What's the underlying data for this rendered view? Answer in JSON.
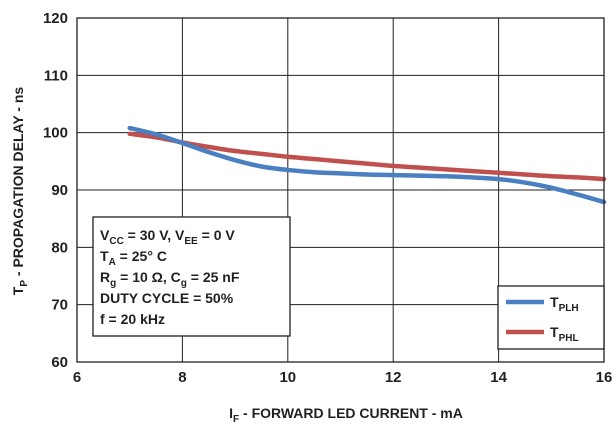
{
  "chart_data": {
    "type": "line",
    "xlabel": {
      "main": "I",
      "sub": "F",
      "rest": " - FORWARD LED CURRENT - mA"
    },
    "ylabel": {
      "main": "T",
      "sub": "P",
      "rest": " - PROPAGATION DELAY - ns"
    },
    "xlim": [
      6,
      16
    ],
    "ylim": [
      60,
      120
    ],
    "xticks": [
      6,
      8,
      10,
      12,
      14,
      16
    ],
    "yticks": [
      60,
      70,
      80,
      90,
      100,
      110,
      120
    ],
    "grid": true,
    "legend_position": "bottom-right",
    "series": [
      {
        "name": "TPLH",
        "label_main": "T",
        "label_sub": "PLH",
        "color": "#4a7fc1",
        "x": [
          7,
          7.5,
          8,
          8.5,
          9,
          9.5,
          10,
          10.5,
          11,
          11.5,
          12,
          12.5,
          13,
          13.5,
          14,
          14.5,
          15,
          15.5,
          16
        ],
        "y": [
          100.8,
          99.7,
          98.2,
          96.6,
          95.2,
          94.1,
          93.5,
          93.1,
          92.9,
          92.7,
          92.6,
          92.5,
          92.4,
          92.2,
          91.9,
          91.3,
          90.4,
          89.2,
          87.9
        ]
      },
      {
        "name": "TPHL",
        "label_main": "T",
        "label_sub": "PHL",
        "color": "#c0504d",
        "x": [
          7,
          7.5,
          8,
          8.5,
          9,
          9.5,
          10,
          10.5,
          11,
          11.5,
          12,
          12.5,
          13,
          13.5,
          14,
          14.5,
          15,
          15.5,
          16
        ],
        "y": [
          99.8,
          99.2,
          98.3,
          97.5,
          96.8,
          96.3,
          95.8,
          95.4,
          95.0,
          94.6,
          94.2,
          93.9,
          93.6,
          93.3,
          93.0,
          92.7,
          92.4,
          92.2,
          91.9
        ]
      }
    ],
    "annotation_box": [
      [
        {
          "t": "V"
        },
        {
          "t": "CC",
          "sub": true
        },
        {
          "t": " = 30 V, V"
        },
        {
          "t": "EE",
          "sub": true
        },
        {
          "t": " = 0 V"
        }
      ],
      [
        {
          "t": "T"
        },
        {
          "t": "A",
          "sub": true
        },
        {
          "t": " = 25° C"
        }
      ],
      [
        {
          "t": "R"
        },
        {
          "t": "g",
          "sub": true
        },
        {
          "t": " = 10 Ω, C"
        },
        {
          "t": "g",
          "sub": true
        },
        {
          "t": "  = 25 nF"
        }
      ],
      [
        {
          "t": "DUTY CYCLE = 50%"
        }
      ],
      [
        {
          "t": "f = 20 kHz"
        }
      ]
    ]
  }
}
